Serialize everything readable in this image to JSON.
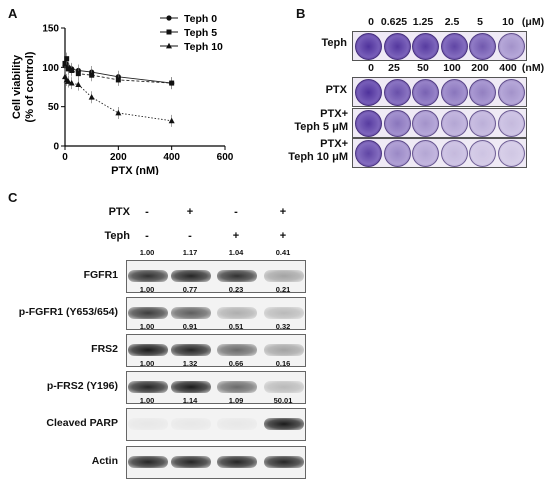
{
  "panels": {
    "a": "A",
    "b": "B",
    "c": "C"
  },
  "chart_data": {
    "type": "line",
    "xlabel": "PTX (nM)",
    "ylabel_line1": "Cell viability",
    "ylabel_line2": "(% of control)",
    "xlim": [
      0,
      600
    ],
    "ylim": [
      0,
      150
    ],
    "xticks": [
      "0",
      "200",
      "400",
      "600"
    ],
    "yticks": [
      "0",
      "50",
      "100",
      "150"
    ],
    "legend_position": "top-right",
    "series": [
      {
        "name": "Teph 0",
        "marker": "circle",
        "x": [
          0,
          6.25,
          12.5,
          25,
          50,
          100,
          200,
          400
        ],
        "y": [
          102,
          104,
          100,
          98,
          96,
          94,
          88,
          80
        ]
      },
      {
        "name": "Teph 5",
        "marker": "square",
        "x": [
          0,
          6.25,
          12.5,
          25,
          50,
          100,
          200,
          400
        ],
        "y": [
          105,
          111,
          98,
          96,
          92,
          90,
          84,
          80
        ]
      },
      {
        "name": "Teph 10",
        "marker": "triangle",
        "x": [
          0,
          6.25,
          12.5,
          25,
          50,
          100,
          200,
          400
        ],
        "y": [
          88,
          84,
          82,
          80,
          78,
          62,
          42,
          32
        ]
      }
    ]
  },
  "colony": {
    "teph_label": "Teph",
    "teph_doses": [
      "0",
      "0.625",
      "1.25",
      "2.5",
      "5",
      "10"
    ],
    "teph_unit": "(μM)",
    "ptx_label": "PTX",
    "ptx_doses": [
      "0",
      "25",
      "50",
      "100",
      "200",
      "400"
    ],
    "ptx_unit": "(nM)",
    "row3_line1": "PTX+",
    "row3_line2": "Teph 5 μM",
    "row4_line1": "PTX+",
    "row4_line2": "Teph 10 μM"
  },
  "western": {
    "ptx_label": "PTX",
    "teph_label": "Teph",
    "ptx_signs": [
      "-",
      "+",
      "-",
      "+"
    ],
    "teph_signs": [
      "-",
      "-",
      "+",
      "+"
    ],
    "blots": [
      {
        "label": "FGFR1",
        "values": [
          "1.00",
          "1.17",
          "1.04",
          "0.41"
        ]
      },
      {
        "label": "p-FGFR1 (Y653/654)",
        "values": [
          "1.00",
          "0.77",
          "0.23",
          "0.21"
        ]
      },
      {
        "label": "FRS2",
        "values": [
          "1.00",
          "0.91",
          "0.51",
          "0.32"
        ]
      },
      {
        "label": "p-FRS2 (Y196)",
        "values": [
          "1.00",
          "1.32",
          "0.66",
          "0.16"
        ]
      },
      {
        "label": "Cleaved PARP",
        "values": [
          "1.00",
          "1.14",
          "1.09",
          "50.01"
        ]
      },
      {
        "label": "Actin",
        "values": []
      }
    ]
  }
}
